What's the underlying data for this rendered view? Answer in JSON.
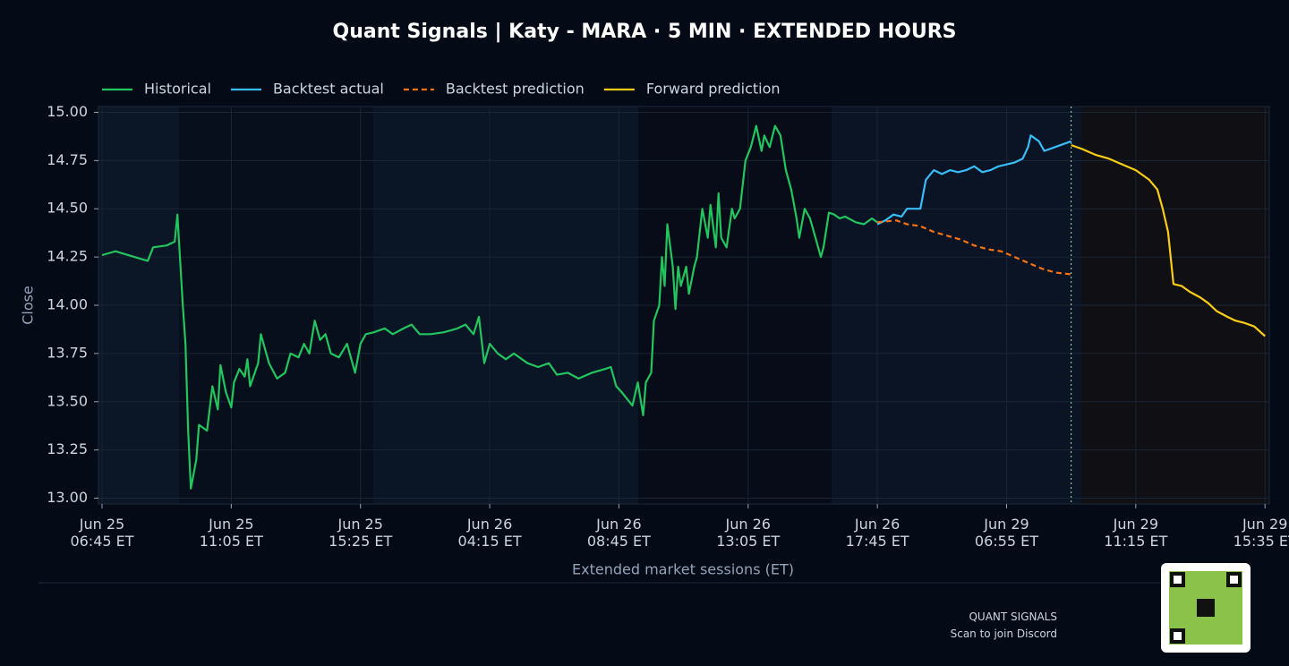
{
  "chart_data": {
    "type": "line",
    "title": "Quant Signals | Katy - MARA  ·  5 MIN  ·  EXTENDED HOURS",
    "y_label": "Close",
    "x_label": "Extended market sessions (ET)",
    "footer": {
      "brand": "QUANT SIGNALS",
      "caption": "Scan to join Discord"
    },
    "xlim": [
      -1.33,
      433.6
    ],
    "ylim": [
      12.97,
      15.03
    ],
    "xticks": [
      {
        "value": 0,
        "label": "Jun 25\n06:45 ET"
      },
      {
        "value": 48,
        "label": "Jun 25\n11:05 ET"
      },
      {
        "value": 96,
        "label": "Jun 25\n15:25 ET"
      },
      {
        "value": 144,
        "label": "Jun 26\n04:15 ET"
      },
      {
        "value": 192,
        "label": "Jun 26\n08:45 ET"
      },
      {
        "value": 240,
        "label": "Jun 26\n13:05 ET"
      },
      {
        "value": 288,
        "label": "Jun 26\n17:45 ET"
      },
      {
        "value": 336,
        "label": "Jun 29\n06:55 ET"
      },
      {
        "value": 384,
        "label": "Jun 29\n11:15 ET"
      },
      {
        "value": 432,
        "label": "Jun 29\n15:35 ET"
      }
    ],
    "yticks": [
      {
        "value": 13,
        "label": "13.00"
      },
      {
        "value": 13.25,
        "label": "13.25"
      },
      {
        "value": 13.5,
        "label": "13.50"
      },
      {
        "value": 13.75,
        "label": "13.75"
      },
      {
        "value": 14,
        "label": "14.00"
      },
      {
        "value": 14.25,
        "label": "14.25"
      },
      {
        "value": 14.5,
        "label": "14.50"
      },
      {
        "value": 14.75,
        "label": "14.75"
      },
      {
        "value": 15,
        "label": "15.00"
      }
    ],
    "grid": true,
    "legend": "top-left",
    "series": [
      {
        "name": "Historical",
        "color": "#22c55e",
        "dashed": false,
        "x": [
          0,
          5,
          12,
          17,
          19,
          24,
          27,
          28,
          30,
          31,
          32,
          33,
          35,
          36,
          39,
          41,
          43,
          44,
          46,
          48,
          49,
          51,
          53,
          54,
          55,
          58,
          59,
          62,
          65,
          68,
          70,
          73,
          75,
          77,
          79,
          81,
          83,
          85,
          88,
          91,
          94,
          96,
          98,
          101,
          105,
          108,
          112,
          115,
          118,
          122,
          127,
          132,
          135,
          138,
          140,
          142,
          144,
          147,
          150,
          153,
          158,
          162,
          166,
          169,
          173,
          177,
          182,
          187,
          189,
          191,
          193,
          197,
          199,
          201,
          202,
          204,
          205,
          207,
          208,
          209,
          210,
          212,
          213,
          214,
          215,
          217,
          218,
          220,
          221,
          223,
          225,
          226,
          228,
          229,
          230,
          232,
          234,
          235,
          237,
          239,
          241,
          243,
          245,
          246,
          248,
          250,
          252,
          254,
          256,
          258,
          259,
          261,
          263,
          265,
          267,
          268,
          270,
          272,
          274,
          276,
          280,
          283,
          286,
          288
        ],
        "values": [
          14.26,
          14.28,
          14.25,
          14.23,
          14.3,
          14.31,
          14.33,
          14.47,
          14.0,
          13.8,
          13.35,
          13.05,
          13.2,
          13.38,
          13.35,
          13.58,
          13.46,
          13.69,
          13.55,
          13.47,
          13.6,
          13.67,
          13.63,
          13.72,
          13.58,
          13.7,
          13.85,
          13.7,
          13.62,
          13.65,
          13.75,
          13.73,
          13.8,
          13.75,
          13.92,
          13.82,
          13.85,
          13.75,
          13.73,
          13.8,
          13.65,
          13.8,
          13.85,
          13.86,
          13.88,
          13.85,
          13.88,
          13.9,
          13.85,
          13.85,
          13.86,
          13.88,
          13.9,
          13.85,
          13.94,
          13.7,
          13.8,
          13.75,
          13.72,
          13.75,
          13.7,
          13.68,
          13.7,
          13.64,
          13.65,
          13.62,
          13.65,
          13.67,
          13.68,
          13.58,
          13.55,
          13.48,
          13.6,
          13.43,
          13.6,
          13.65,
          13.92,
          14.0,
          14.25,
          14.1,
          14.42,
          14.2,
          13.98,
          14.2,
          14.1,
          14.2,
          14.06,
          14.2,
          14.25,
          14.5,
          14.35,
          14.52,
          14.3,
          14.58,
          14.35,
          14.3,
          14.5,
          14.45,
          14.5,
          14.75,
          14.82,
          14.93,
          14.8,
          14.88,
          14.82,
          14.93,
          14.88,
          14.7,
          14.6,
          14.45,
          14.35,
          14.5,
          14.45,
          14.35,
          14.25,
          14.3,
          14.48,
          14.47,
          14.45,
          14.46,
          14.43,
          14.42,
          14.45,
          14.43
        ]
      },
      {
        "name": "Backtest actual",
        "color": "#38bdf8",
        "dashed": false,
        "x": [
          288,
          291,
          294,
          297,
          299,
          302,
          304,
          306,
          309,
          312,
          315,
          318,
          321,
          324,
          327,
          330,
          333,
          336,
          339,
          342,
          344,
          345,
          348,
          350,
          354,
          360
        ],
        "values": [
          14.42,
          14.44,
          14.47,
          14.46,
          14.5,
          14.5,
          14.5,
          14.65,
          14.7,
          14.68,
          14.7,
          14.69,
          14.7,
          14.72,
          14.69,
          14.7,
          14.72,
          14.73,
          14.74,
          14.76,
          14.82,
          14.88,
          14.85,
          14.8,
          14.82,
          14.85
        ]
      },
      {
        "name": "Backtest prediction",
        "color": "#f97316",
        "dashed": true,
        "x": [
          288,
          295,
          299,
          304,
          309,
          314,
          319,
          324,
          329,
          334,
          339,
          344,
          349,
          354,
          360
        ],
        "values": [
          14.43,
          14.44,
          14.42,
          14.41,
          14.38,
          14.36,
          14.34,
          14.31,
          14.29,
          14.28,
          14.25,
          14.22,
          14.19,
          14.17,
          14.16
        ]
      },
      {
        "name": "Forward prediction",
        "color": "#facc15",
        "dashed": false,
        "x": [
          360,
          364,
          369,
          374,
          379,
          384,
          389,
          392,
          394,
          396,
          398,
          401,
          404,
          408,
          411,
          414,
          418,
          421,
          424,
          428,
          432
        ],
        "values": [
          14.83,
          14.81,
          14.78,
          14.76,
          14.73,
          14.7,
          14.65,
          14.6,
          14.5,
          14.38,
          14.11,
          14.1,
          14.07,
          14.04,
          14.01,
          13.97,
          13.94,
          13.92,
          13.91,
          13.89,
          13.84
        ]
      }
    ]
  }
}
